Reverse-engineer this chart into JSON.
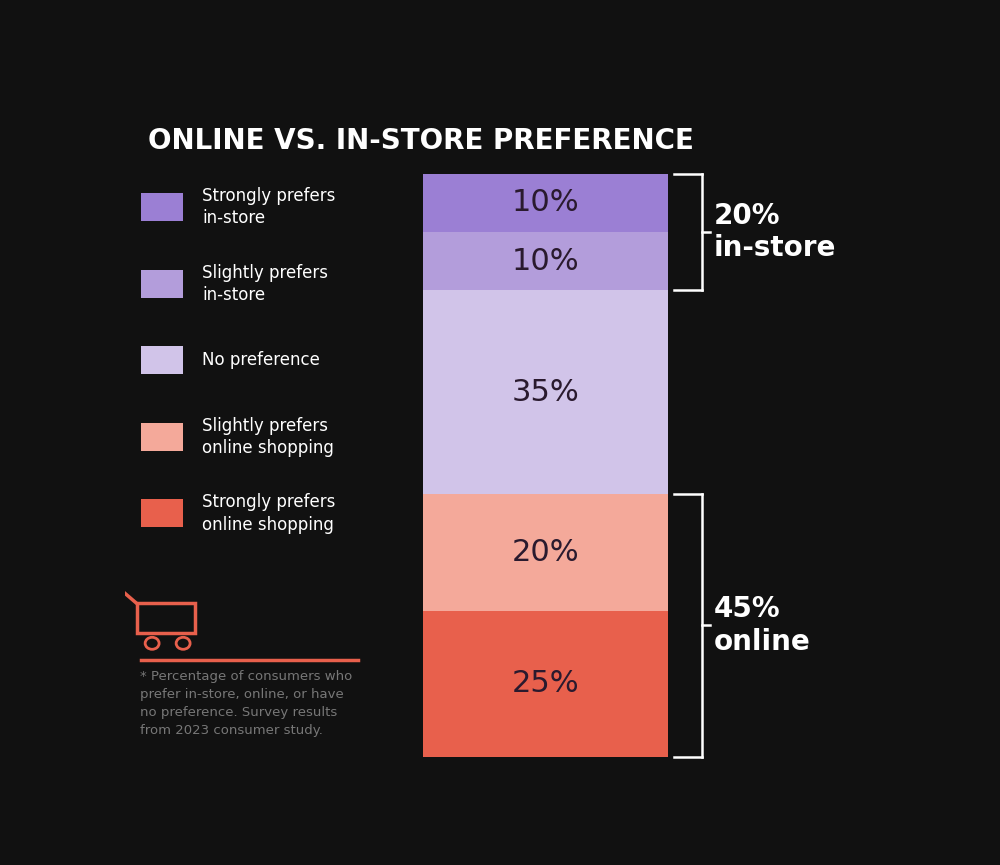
{
  "title": "ONLINE VS. IN-STORE PREFERENCE",
  "title_fontsize": 20,
  "background_color": "#111111",
  "text_color": "#ffffff",
  "bar_label_color": "#2a1a2e",
  "segments": [
    {
      "label": "Strongly prefers\nin-store",
      "value": 10,
      "color": "#9b7fd4",
      "text": "10%"
    },
    {
      "label": "Slightly prefers\nin-store",
      "value": 10,
      "color": "#b39ddb",
      "text": "10%"
    },
    {
      "label": "No preference",
      "value": 35,
      "color": "#d1c4e9",
      "text": "35%"
    },
    {
      "label": "Slightly prefers\nonline shopping",
      "value": 20,
      "color": "#f4a99a",
      "text": "20%"
    },
    {
      "label": "Strongly prefers\nonline shopping",
      "value": 25,
      "color": "#e8604c",
      "text": "25%"
    }
  ],
  "bracket_in_store_label": "20%\nin-store",
  "bracket_online_label": "45%\nonline",
  "legend_items": [
    {
      "label": "Strongly prefers\nin-store",
      "color": "#9b7fd4"
    },
    {
      "label": "Slightly prefers\nin-store",
      "color": "#b39ddb"
    },
    {
      "label": "No preference",
      "color": "#d1c4e9"
    },
    {
      "label": "Slightly prefers\nonline shopping",
      "color": "#f4a99a"
    },
    {
      "label": "Strongly prefers\nonline shopping",
      "color": "#e8604c"
    }
  ],
  "cart_icon_color": "#e8604c",
  "divider_color": "#e8604c",
  "footnote": "* Percentage of consumers who\nprefer in-store, online, or have\nno preference. Survey results\nfrom 2023 consumer study."
}
